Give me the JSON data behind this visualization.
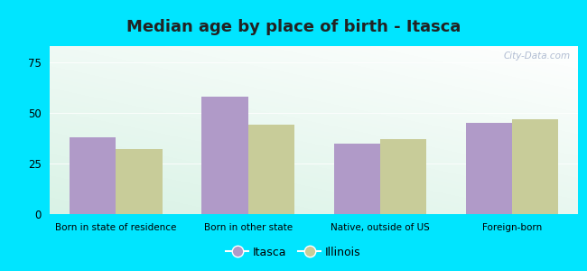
{
  "title": "Median age by place of birth - Itasca",
  "categories": [
    "Born in state of residence",
    "Born in other state",
    "Native, outside of US",
    "Foreign-born"
  ],
  "itasca_values": [
    38,
    58,
    35,
    45
  ],
  "illinois_values": [
    32,
    44,
    37,
    47
  ],
  "itasca_color": "#b09ac8",
  "illinois_color": "#c8cc99",
  "background_outer": "#00e5ff",
  "ylim": [
    0,
    83
  ],
  "yticks": [
    0,
    25,
    50,
    75
  ],
  "legend_itasca": "Itasca",
  "legend_illinois": "Illinois",
  "title_fontsize": 13,
  "bar_width": 0.35,
  "watermark": "City-Data.com"
}
